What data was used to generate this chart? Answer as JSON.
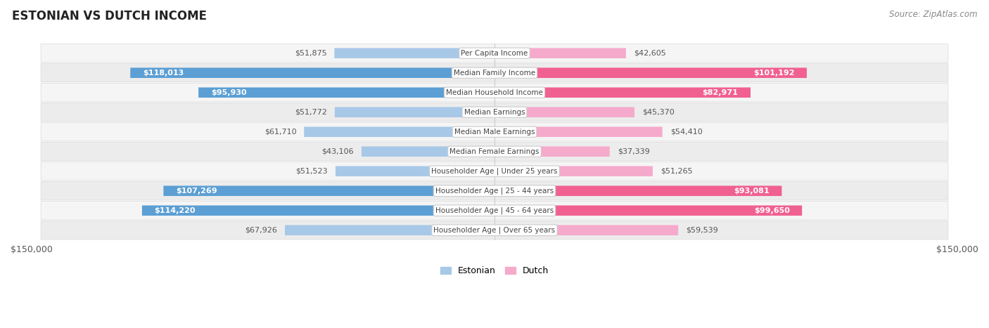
{
  "title": "ESTONIAN VS DUTCH INCOME",
  "source": "Source: ZipAtlas.com",
  "categories": [
    "Per Capita Income",
    "Median Family Income",
    "Median Household Income",
    "Median Earnings",
    "Median Male Earnings",
    "Median Female Earnings",
    "Householder Age | Under 25 years",
    "Householder Age | 25 - 44 years",
    "Householder Age | 45 - 64 years",
    "Householder Age | Over 65 years"
  ],
  "estonian_values": [
    51875,
    118013,
    95930,
    51772,
    61710,
    43106,
    51523,
    107269,
    114220,
    67926
  ],
  "dutch_values": [
    42605,
    101192,
    82971,
    45370,
    54410,
    37339,
    51265,
    93081,
    99650,
    59539
  ],
  "max_value": 150000,
  "estonian_color_light": "#a8c8e8",
  "estonian_color_dark": "#5b9fd4",
  "dutch_color_light": "#f5aacc",
  "dutch_color_dark": "#f06090",
  "threshold": 80000,
  "bar_height": 0.52,
  "legend_estonian": "Estonian",
  "legend_dutch": "Dutch",
  "axis_label_left": "$150,000",
  "axis_label_right": "$150,000",
  "bg_color": "#ffffff",
  "row_bg_even": "#f5f5f5",
  "row_bg_odd": "#ececec",
  "center_line_color": "#cccccc"
}
